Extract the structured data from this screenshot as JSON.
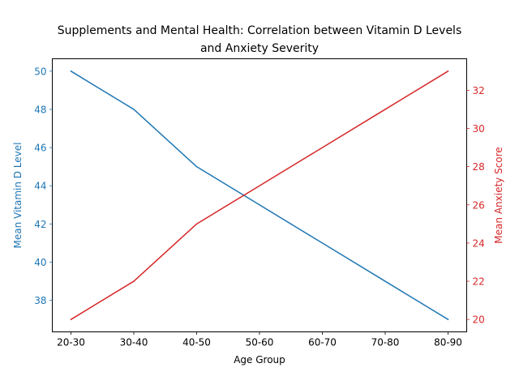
{
  "chart_data": {
    "type": "line",
    "title": "Supplements and Mental Health: Correlation between Vitamin D Levels and Anxiety Severity",
    "title_lines": [
      "Supplements and Mental Health: Correlation between Vitamin D Levels",
      "and Anxiety Severity"
    ],
    "xlabel": "Age Group",
    "categories": [
      "20-30",
      "30-40",
      "40-50",
      "50-60",
      "60-70",
      "70-80",
      "80-90"
    ],
    "series": [
      {
        "name": "Mean Vitamin D Level",
        "axis": "left",
        "color": "#1f77b4",
        "values": [
          50,
          48,
          45,
          43,
          41,
          39,
          37
        ]
      },
      {
        "name": "Mean Anxiety Score",
        "axis": "right",
        "color": "#d62728",
        "values": [
          20,
          22,
          25,
          27,
          29,
          31,
          33
        ]
      }
    ],
    "y_left": {
      "label": "Mean Vitamin D Level",
      "ylim": [
        36.35,
        50.65
      ],
      "ticks": [
        38,
        40,
        42,
        44,
        46,
        48,
        50
      ],
      "color": "#1f77b4"
    },
    "y_right": {
      "label": "Mean Anxiety Score",
      "ylim": [
        19.35,
        33.65
      ],
      "ticks": [
        20,
        22,
        24,
        26,
        28,
        30,
        32
      ],
      "color": "#d62728"
    },
    "grid": false,
    "legend": "none"
  }
}
